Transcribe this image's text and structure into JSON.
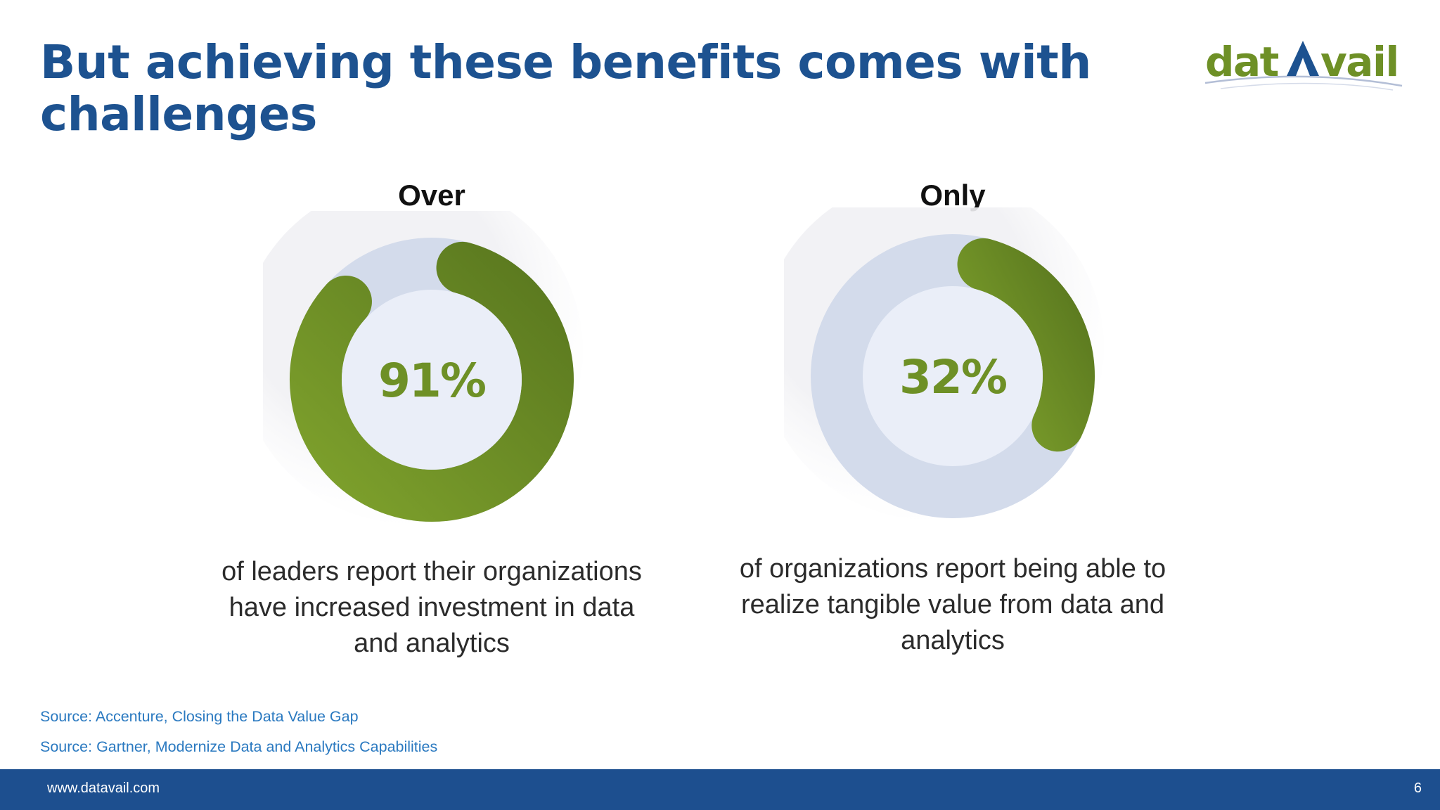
{
  "slide": {
    "title": "But achieving these benefits comes with challenges",
    "logo_text": "datAvail"
  },
  "stats": [
    {
      "lead": "Over",
      "value_label": "91%",
      "fill_fraction": 0.91,
      "description": "of leaders report their organizations have increased investment in data and analytics"
    },
    {
      "lead": "Only",
      "value_label": "32%",
      "fill_fraction": 0.32,
      "description": "of organizations report being able to realize tangible value from data and analytics"
    }
  ],
  "sources": [
    "Source: Accenture, Closing the Data Value Gap",
    "Source: Gartner, Modernize Data and Analytics Capabilities"
  ],
  "footer": {
    "url": "www.datavail.com",
    "page_number": "6"
  },
  "colors": {
    "title": "#1d5290",
    "green": "#6e9026",
    "green_dark": "#5c7a22",
    "track": "#d3dbeb",
    "inner": "#eaeef8",
    "footer_bar": "#1d4f8f",
    "source_text": "#2a79c0"
  }
}
